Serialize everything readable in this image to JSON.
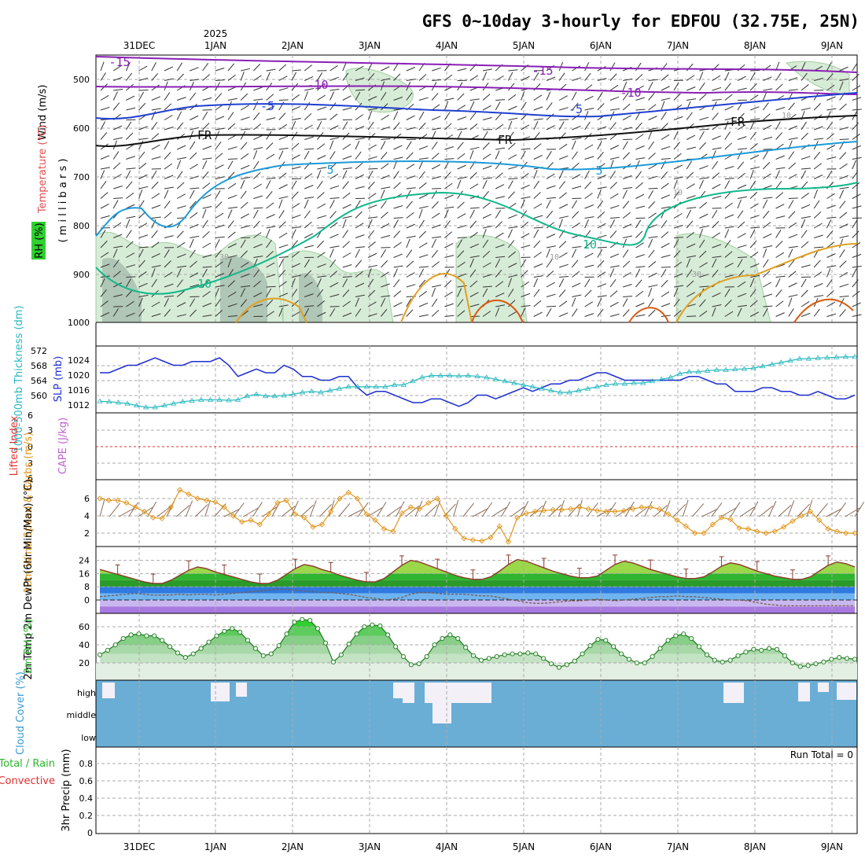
{
  "title": "GFS 0~10day 3-hourly for EDFOU (32.75E, 25N)",
  "year_label": "2025",
  "dates": [
    "31DEC",
    "1JAN",
    "2JAN",
    "3JAN",
    "4JAN",
    "5JAN",
    "6JAN",
    "7JAN",
    "8JAN",
    "9JAN"
  ],
  "run_total_label": "Run Total = 0",
  "colors": {
    "grid": "#aaaaaa",
    "rh_fill": "#d7ecd7",
    "rh_fill_dark": "#8fa89a",
    "iso_purple": "#8a1fb5",
    "iso_blue": "#1f3fd0",
    "iso_light_blue": "#1c9ad8",
    "iso_green": "#10b88a",
    "iso_orange": "#e0a020",
    "iso_dark_orange": "#d85a10",
    "slp": "#1f2fd0",
    "thickness": "#28b8c0",
    "wind10m": "#e0961e",
    "temp_green": "#2fb52f",
    "cloud": "#6aaed6",
    "lifted_index_line": "#e03030"
  },
  "chart_data": [
    {
      "type": "contour",
      "panel": "upper-air",
      "ylabel_parts": [
        "Wind (m/s)",
        "Temperature (°C)",
        "RH (%)"
      ],
      "ylabel_units": "( m i l l i b a r s )",
      "y_ticks": [
        "500",
        "600",
        "700",
        "800",
        "900",
        "1000"
      ],
      "contour_labels": [
        "-15",
        "-15",
        "-10",
        "-10",
        "-5",
        "-5",
        "FR",
        "FR",
        "FR",
        "5",
        "5",
        "10",
        "10",
        "10",
        "30",
        "30",
        "10",
        "10"
      ]
    },
    {
      "type": "line",
      "panel": "slp-thickness",
      "ylabel_left": "1000-500mb Thickness (dm)",
      "ylabel_right": "SLP (mb)",
      "y_ticks_left": [
        "572",
        "568",
        "564",
        "560"
      ],
      "y_ticks_right": [
        "1024",
        "1020",
        "1016",
        "1012"
      ],
      "series": [
        {
          "name": "SLP",
          "values": [
            1022,
            1022,
            1023,
            1024,
            1024,
            1025,
            1026,
            1025,
            1024,
            1024,
            1025,
            1025,
            1025,
            1026,
            1024,
            1021,
            1022,
            1023,
            1022,
            1022,
            1024,
            1023,
            1021,
            1021,
            1020,
            1020,
            1021,
            1021,
            1018,
            1016,
            1017,
            1017,
            1016,
            1015,
            1014,
            1014,
            1015,
            1015,
            1014,
            1013,
            1014,
            1016,
            1016,
            1015,
            1016,
            1017,
            1018,
            1017,
            1018,
            1019,
            1019,
            1020,
            1020,
            1021,
            1022,
            1022,
            1021,
            1020,
            1020,
            1020,
            1020,
            1020,
            1020,
            1020,
            1021,
            1021,
            1020,
            1019,
            1019,
            1017,
            1017,
            1017,
            1018,
            1018,
            1017,
            1017,
            1016,
            1016,
            1017,
            1016,
            1015,
            1015,
            1016
          ]
        },
        {
          "name": "Thickness",
          "values": [
            559.6,
            559.5,
            559.3,
            559.0,
            558.5,
            558.0,
            558.0,
            558.5,
            559.0,
            559.5,
            559.8,
            560.0,
            560.0,
            560.0,
            559.9,
            560.0,
            561.0,
            561.5,
            561.0,
            561.0,
            561.2,
            561.5,
            562.0,
            562.3,
            562.0,
            562.5,
            563.0,
            563.5,
            563.5,
            563.5,
            563.5,
            563.5,
            564.0,
            564.0,
            565.0,
            566.0,
            566.5,
            566.5,
            566.5,
            566.4,
            566.5,
            566.3,
            566.0,
            565.5,
            565.0,
            564.5,
            564.0,
            563.5,
            563.0,
            562.5,
            562.0,
            562.0,
            562.5,
            563.0,
            563.5,
            564.0,
            564.3,
            564.3,
            564.5,
            564.5,
            565.0,
            565.5,
            566.0,
            567.0,
            567.5,
            567.5,
            567.8,
            568.0,
            568.0,
            568.2,
            568.3,
            568.5,
            569.0,
            569.5,
            570.0,
            570.5,
            571.0,
            571.0,
            571.2,
            571.3,
            571.4,
            571.5,
            571.5
          ]
        }
      ]
    },
    {
      "type": "line",
      "panel": "lifted-index-cape",
      "ylabel_left": "Lifted Index",
      "ylabel_right": "CAPE (J/kg)",
      "y_ticks": [
        "6",
        "3",
        "0",
        "3",
        "6"
      ],
      "values": []
    },
    {
      "type": "line",
      "panel": "wind-10m",
      "ylabel": "10m Wind Speed & Barbs (m/s)",
      "y_ticks": [
        "6",
        "4",
        "2"
      ],
      "values": [
        6.0,
        5.8,
        5.8,
        5.5,
        5.0,
        4.5,
        3.8,
        3.7,
        5.0,
        7.0,
        6.5,
        6.0,
        5.8,
        5.6,
        5.0,
        4.0,
        3.3,
        3.5,
        3.0,
        4.2,
        5.5,
        5.8,
        4.2,
        3.8,
        2.7,
        3.0,
        4.5,
        6.0,
        6.7,
        6.0,
        4.2,
        3.5,
        2.5,
        2.2,
        4.3,
        5.0,
        4.8,
        5.5,
        6.0,
        4.0,
        2.5,
        1.4,
        1.2,
        1.1,
        1.5,
        2.8,
        1.0,
        3.8,
        4.3,
        4.5,
        4.6,
        4.7,
        4.7,
        4.8,
        5.0,
        4.8,
        4.6,
        4.5,
        4.5,
        4.6,
        4.8,
        5.0,
        5.0,
        4.8,
        4.2,
        3.5,
        2.8,
        2.0,
        2.0,
        3.0,
        3.8,
        3.6,
        2.6,
        2.5,
        2.2,
        2.0,
        2.2,
        2.7,
        3.4,
        4.0,
        4.5,
        3.5,
        2.5,
        2.2,
        2.0,
        2.0
      ]
    },
    {
      "type": "area",
      "panel": "temperature",
      "ylabel": "2m Temp 2m DewPt (6hr Min/Max) (°C)",
      "y_ticks": [
        "24",
        "16",
        "8",
        "0"
      ],
      "series": [
        {
          "name": "2m Temp",
          "values": [
            18.5,
            17,
            15.5,
            14,
            12.5,
            11,
            10,
            10,
            12,
            15,
            18,
            20,
            19,
            17,
            15.5,
            14,
            12.5,
            11,
            10,
            10,
            12,
            15.5,
            19,
            21.5,
            20.5,
            18.5,
            17,
            15,
            13.5,
            12,
            11,
            11,
            13,
            17,
            21,
            24,
            23,
            21,
            19,
            17,
            15,
            13.5,
            12.5,
            12.5,
            14,
            17.5,
            21.5,
            24.5,
            23.5,
            21.5,
            19.5,
            17.5,
            16,
            14.5,
            13.5,
            13.5,
            14.5,
            18,
            21.5,
            23.5,
            22.5,
            20.5,
            18.5,
            17,
            15.5,
            14,
            13,
            13,
            14,
            17,
            20.5,
            22.5,
            21.5,
            19.5,
            17.5,
            16,
            14.5,
            13.5,
            12.5,
            12.5,
            14,
            17.5,
            21,
            23,
            22,
            20
          ]
        },
        {
          "name": "2m DewPt",
          "values": [
            2,
            2.5,
            3,
            3.5,
            4,
            3.5,
            3,
            3,
            3,
            3.5,
            3,
            3.5,
            3.5,
            3,
            3.5,
            4,
            4.5,
            5,
            5.5,
            6,
            6.5,
            6.5,
            6,
            5.5,
            5,
            4.5,
            4.5,
            4,
            3.5,
            2.5,
            1.5,
            1,
            0,
            0.5,
            1.5,
            3.5,
            4.5,
            4.5,
            4,
            3.5,
            3.5,
            3.5,
            3,
            2.5,
            2.5,
            1.5,
            0.5,
            -0.5,
            -1.5,
            -2,
            -2,
            -1.5,
            -1,
            -0.5,
            -0.5,
            0,
            0.5,
            0,
            -0.5,
            0,
            0.5,
            1,
            1.5,
            2,
            2,
            2.5,
            2,
            2,
            1.5,
            1,
            0.5,
            0,
            0,
            -0.5,
            -1.5,
            -2.5,
            -3,
            -3.5,
            -3.5,
            -3.5,
            -3.5,
            -3.5,
            -3.5,
            -3.5,
            -3.5,
            -3.5
          ]
        }
      ]
    },
    {
      "type": "area",
      "panel": "relative-humidity",
      "ylabel": "2m RH (%)",
      "y_ticks": [
        "60",
        "40",
        "20"
      ],
      "values": [
        29,
        34,
        40,
        47,
        51,
        52,
        50,
        50,
        45,
        38,
        31,
        26,
        30,
        36,
        43,
        50,
        55,
        58,
        54,
        45,
        36,
        28,
        30,
        39,
        52,
        65,
        68,
        67,
        58,
        42,
        21,
        29,
        41,
        52,
        60,
        62,
        61,
        51,
        38,
        27,
        18,
        19,
        27,
        40,
        47,
        51,
        47,
        37,
        28,
        23,
        25,
        27,
        29,
        30,
        30,
        31,
        30,
        25,
        19,
        15,
        18,
        22,
        30,
        39,
        46,
        45,
        38,
        30,
        24,
        20,
        20,
        27,
        36,
        45,
        50,
        52,
        47,
        38,
        29,
        23,
        21,
        23,
        28,
        32,
        35,
        34,
        36,
        35,
        28,
        20,
        16,
        17,
        19,
        21,
        24,
        26,
        25,
        24
      ]
    },
    {
      "type": "area",
      "panel": "cloud-cover",
      "ylabel": "Cloud Cover (%)",
      "y_ticks": [
        "high",
        "middle",
        "low"
      ],
      "values": []
    },
    {
      "type": "bar",
      "panel": "precipitation",
      "ylabel": "3hr Precip (mm)",
      "ylabel_left": "Total / Rain",
      "ylabel_left2": "Convective",
      "y_ticks": [
        "0.8",
        "0.6",
        "0.4",
        "0.2",
        "0"
      ],
      "values": []
    }
  ]
}
